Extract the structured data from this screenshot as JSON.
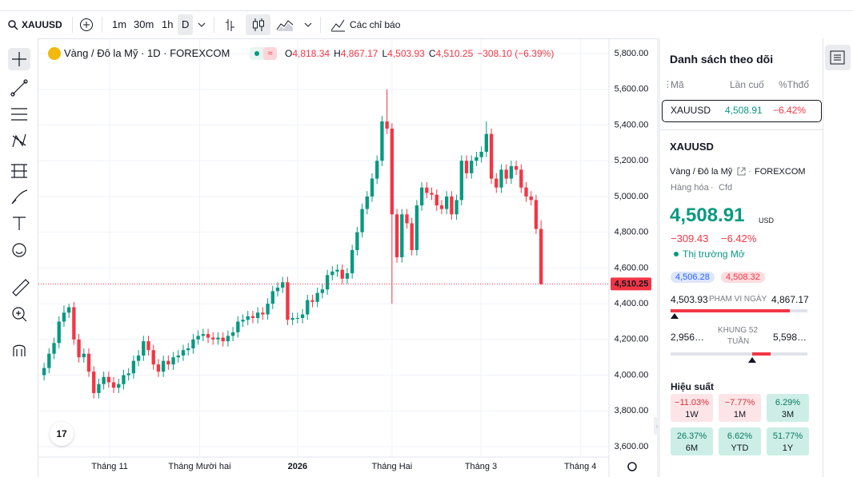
{
  "toolbar": {
    "symbol": "XAUUSD",
    "intervals": [
      "1m",
      "30m",
      "1h",
      "D"
    ],
    "indicators": "Các chỉ báo"
  },
  "chart_data": {
    "type": "candlestick",
    "symbol_title": "Vàng / Đô la Mỹ · 1D · FOREXCOM",
    "ohlc_legend": [
      {
        "key": "O",
        "text": "4,818.34"
      },
      {
        "key": "H",
        "text": "4,867.17"
      },
      {
        "key": "L",
        "text": "4,503.93"
      },
      {
        "key": "C",
        "text": "4,510.25"
      }
    ],
    "change": "−308.10 (−6.39%)",
    "up_color": "#089981",
    "down_color": "#f23645",
    "open": [
      4000,
      4040,
      4120,
      4180,
      4300,
      4350,
      4380,
      4200,
      4100,
      4120,
      4020,
      3900,
      3950,
      3990,
      3960,
      3930,
      3950,
      4000,
      4010,
      4080,
      4110,
      4190,
      4140,
      4060,
      4020,
      4080,
      4060,
      4100,
      4110,
      4140,
      4150,
      4200,
      4220,
      4230,
      4210,
      4200,
      4210,
      4190,
      4220,
      4240,
      4300,
      4310,
      4330,
      4320,
      4350,
      4340,
      4400,
      4470,
      4490,
      4520,
      4310,
      4320,
      4320,
      4340,
      4420,
      4410,
      4460,
      4480,
      4560,
      4580,
      4590,
      4540,
      4570,
      4700,
      4800,
      4930,
      5000,
      5100,
      5200,
      5420,
      5380,
      4900,
      4660,
      4900,
      4850,
      4700,
      4950,
      5050,
      5020,
      5010,
      4950,
      4930,
      5000,
      4900,
      4980,
      5200,
      5130,
      5200,
      5220,
      5250,
      5350,
      5100,
      5050,
      5150,
      5100,
      5170,
      5150,
      5050,
      5000,
      4980,
      4818.34
    ],
    "high": [
      4070,
      4150,
      4210,
      4330,
      4390,
      4400,
      4410,
      4230,
      4150,
      4150,
      4050,
      3980,
      4020,
      4020,
      3990,
      3980,
      4030,
      4040,
      4110,
      4140,
      4220,
      4220,
      4170,
      4090,
      4110,
      4110,
      4130,
      4140,
      4170,
      4180,
      4230,
      4250,
      4260,
      4260,
      4240,
      4240,
      4240,
      4250,
      4270,
      4330,
      4340,
      4360,
      4360,
      4380,
      4380,
      4430,
      4500,
      4520,
      4550,
      4550,
      4350,
      4350,
      4370,
      4450,
      4450,
      4490,
      4510,
      4590,
      4610,
      4620,
      4620,
      4600,
      4730,
      4830,
      4960,
      5030,
      5130,
      5230,
      5450,
      5600,
      5410,
      4930,
      4930,
      4930,
      4880,
      4980,
      5080,
      5080,
      5050,
      5040,
      4980,
      5030,
      5030,
      5010,
      5230,
      5230,
      5230,
      5250,
      5280,
      5420,
      5380,
      5130,
      5180,
      5180,
      5200,
      5200,
      5180,
      5080,
      5030,
      5010,
      4867.17
    ],
    "low": [
      3970,
      4010,
      4090,
      4150,
      4270,
      4320,
      4170,
      4070,
      4070,
      3990,
      3870,
      3870,
      3920,
      3930,
      3900,
      3900,
      3920,
      3970,
      3980,
      4050,
      4080,
      4110,
      4030,
      3990,
      3990,
      4030,
      4030,
      4070,
      4080,
      4110,
      4120,
      4170,
      4190,
      4180,
      4170,
      4170,
      4160,
      4160,
      4190,
      4210,
      4270,
      4280,
      4290,
      4290,
      4310,
      4310,
      4370,
      4440,
      4460,
      4280,
      4280,
      4290,
      4290,
      4310,
      4380,
      4380,
      4430,
      4450,
      4530,
      4550,
      4510,
      4510,
      4540,
      4670,
      4770,
      4900,
      4970,
      5070,
      5170,
      5350,
      4400,
      4630,
      4630,
      4820,
      4670,
      4670,
      4920,
      4990,
      4980,
      4920,
      4900,
      4900,
      4870,
      4870,
      4950,
      5100,
      5100,
      5170,
      5190,
      5220,
      5070,
      5020,
      5020,
      5070,
      5070,
      5120,
      5020,
      4970,
      4950,
      4790,
      4503.93
    ],
    "close": [
      4040,
      4120,
      4180,
      4300,
      4350,
      4380,
      4200,
      4100,
      4120,
      4020,
      3900,
      3950,
      3990,
      3960,
      3930,
      3950,
      4000,
      4010,
      4080,
      4110,
      4190,
      4140,
      4060,
      4020,
      4080,
      4060,
      4100,
      4110,
      4140,
      4150,
      4200,
      4220,
      4230,
      4210,
      4200,
      4210,
      4190,
      4220,
      4240,
      4300,
      4310,
      4330,
      4320,
      4350,
      4340,
      4400,
      4470,
      4490,
      4520,
      4310,
      4320,
      4320,
      4340,
      4420,
      4410,
      4460,
      4480,
      4560,
      4580,
      4590,
      4540,
      4570,
      4700,
      4800,
      4930,
      5000,
      5100,
      5200,
      5420,
      5380,
      4900,
      4660,
      4900,
      4850,
      4700,
      4950,
      5050,
      5020,
      5010,
      4950,
      4930,
      5000,
      4900,
      4980,
      5200,
      5130,
      5200,
      5220,
      5250,
      5350,
      5100,
      5050,
      5150,
      5100,
      5170,
      5150,
      5050,
      5000,
      4980,
      4818.34,
      4510.25
    ],
    "xlim": [
      0,
      114
    ],
    "xticks": [
      {
        "value": 13.7,
        "label": "Tháng 11"
      },
      {
        "value": 31.8,
        "label": "Tháng Mười hai"
      },
      {
        "value": 51.5,
        "label": "2026"
      },
      {
        "value": 70.5,
        "label": "Tháng Hai"
      },
      {
        "value": 88.4,
        "label": "Tháng 3"
      },
      {
        "value": 108.4,
        "label": "Tháng 4"
      }
    ],
    "ylim": [
      3600,
      5800
    ],
    "yticks": [
      {
        "value": 3600,
        "label": "3,600.00"
      },
      {
        "value": 3800,
        "label": "3,800.00"
      },
      {
        "value": 4000,
        "label": "4,000.00"
      },
      {
        "value": 4200,
        "label": "4,200.00"
      },
      {
        "value": 4400,
        "label": "4,400.00"
      },
      {
        "value": 4600,
        "label": "4,600.00"
      },
      {
        "value": 4800,
        "label": "4,800.00"
      },
      {
        "value": 5000,
        "label": "5,000.00"
      },
      {
        "value": 5200,
        "label": "5,200.00"
      },
      {
        "value": 5400,
        "label": "5,400.00"
      },
      {
        "value": 5600,
        "label": "5,600.00"
      },
      {
        "value": 5800,
        "label": "5,800.00"
      }
    ],
    "last_price": {
      "value": 4510.25,
      "label": "4,510.25"
    },
    "grid": true
  },
  "watchlist": {
    "title": "Danh sách theo dõi",
    "columns": [
      "Mã",
      "Lần cuố",
      "%Thđổ"
    ],
    "rows": [
      [
        "XAUUSD",
        "4,508.91",
        "−6.42%"
      ]
    ]
  },
  "details": {
    "symbol": "XAUUSD",
    "name": "Vàng / Đô la Mỹ",
    "exchange": "FOREXCOM",
    "category": "Hàng hóa",
    "kind": "Cfd",
    "price": "4,508.91",
    "currency": "USD",
    "change": "−309.43",
    "change_pct": "−6.42%",
    "status": "Thị trường Mở",
    "bid": "4,506.28",
    "ask": "4,508.32",
    "day_low": "4,503.93",
    "day_label": "PHẠM VI NGÀY",
    "day_high": "4,867.17",
    "wk_low": "2,956…",
    "wk_label": [
      "KHUNG 52",
      "TUẦN"
    ],
    "wk_high": "5,598…",
    "performance_title": "Hiệu suất",
    "performance": [
      {
        "value": "−11.03%",
        "period": "1W",
        "tone": "down"
      },
      {
        "value": "−7.77%",
        "period": "1M",
        "tone": "down"
      },
      {
        "value": "6.29%",
        "period": "3M",
        "tone": "up"
      },
      {
        "value": "26.37%",
        "period": "6M",
        "tone": "up"
      },
      {
        "value": "6.62%",
        "period": "YTD",
        "tone": "up"
      },
      {
        "value": "51.77%",
        "period": "1Y",
        "tone": "up"
      }
    ]
  }
}
